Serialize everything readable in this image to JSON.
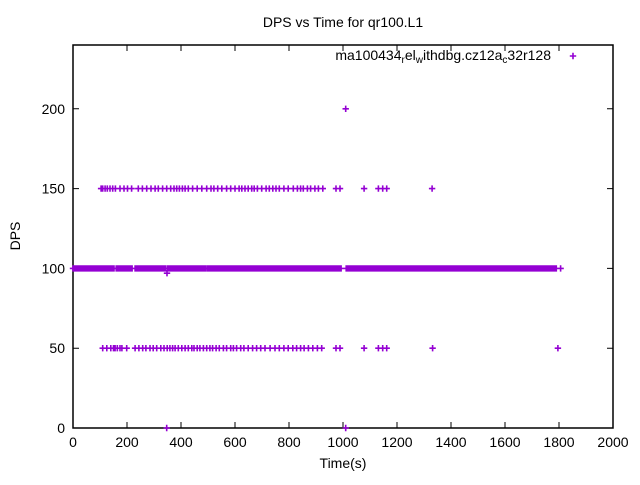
{
  "chart_data": {
    "type": "scatter",
    "title": "DPS vs Time for qr100.L1",
    "xlabel": "Time(s)",
    "ylabel": "DPS",
    "xlim": [
      0,
      2000
    ],
    "ylim": [
      0,
      240
    ],
    "xticks": [
      0,
      200,
      400,
      600,
      800,
      1000,
      1200,
      1400,
      1600,
      1800,
      2000
    ],
    "yticks": [
      0,
      50,
      100,
      150,
      200
    ],
    "grid": false,
    "legend_position": "top-right-inside",
    "marker": "plus",
    "background_color": "#ffffff",
    "axis_color": "#000000",
    "series": [
      {
        "name": "ma100434_rel_withdbg.cz12a_c32r128",
        "label_parts": [
          {
            "text": "ma100434",
            "sub": false
          },
          {
            "text": "r",
            "sub": true
          },
          {
            "text": "el",
            "sub": false
          },
          {
            "text": "w",
            "sub": true
          },
          {
            "text": "ithdbg.cz12a",
            "sub": false
          },
          {
            "text": "c",
            "sub": true
          },
          {
            "text": "32r128",
            "sub": false
          }
        ],
        "color": "#9400d3",
        "points_dps_150_times": [
          104,
          110,
          119,
          127,
          137,
          147,
          157,
          174,
          189,
          202,
          217,
          242,
          257,
          273,
          289,
          304,
          316,
          332,
          347,
          362,
          374,
          384,
          394,
          405,
          415,
          427,
          443,
          460,
          477,
          495,
          511,
          522,
          536,
          551,
          569,
          584,
          600,
          615,
          625,
          637,
          649,
          662,
          671,
          683,
          699,
          715,
          727,
          740,
          752,
          764,
          781,
          797,
          816,
          831,
          843,
          853,
          868,
          880,
          896,
          909,
          925,
          974,
          989,
          1078,
          1131,
          1147,
          1162,
          1330
        ],
        "points_dps_50_times": [
          110,
          125,
          140,
          150,
          156,
          164,
          174,
          181,
          199,
          230,
          244,
          258,
          270,
          285,
          297,
          310,
          325,
          337,
          349,
          359,
          369,
          378,
          390,
          403,
          415,
          427,
          440,
          448,
          460,
          470,
          483,
          495,
          507,
          517,
          530,
          542,
          557,
          569,
          584,
          594,
          606,
          621,
          633,
          649,
          665,
          680,
          695,
          711,
          730,
          748,
          764,
          781,
          797,
          814,
          828,
          843,
          856,
          872,
          888,
          905,
          921,
          974,
          989,
          1078,
          1131,
          1147,
          1162,
          1332,
          1796
        ],
        "dense_runs_dps_100": [
          [
            0,
            152
          ],
          [
            160,
            219
          ],
          [
            230,
            272
          ],
          [
            277,
            287
          ],
          [
            292,
            300
          ],
          [
            306,
            343
          ],
          [
            350,
            492
          ],
          [
            498,
            513
          ],
          [
            519,
            581
          ],
          [
            586,
            597
          ],
          [
            602,
            626
          ],
          [
            631,
            755
          ],
          [
            760,
            993
          ],
          [
            1012,
            1790
          ]
        ],
        "other_points": [
          [
            1010,
            200
          ],
          [
            347,
            0
          ],
          [
            1010,
            0
          ],
          [
            348,
            97
          ],
          [
            1806,
            100
          ]
        ]
      }
    ]
  }
}
